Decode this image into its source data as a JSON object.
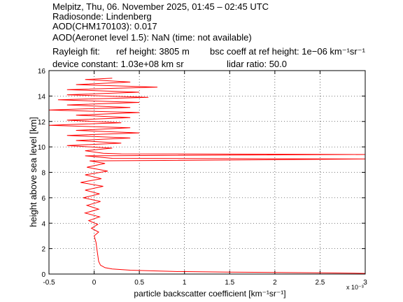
{
  "chart_data": {
    "type": "profile",
    "header": [
      "Melpitz, Thu, 06. November 2025, 01:45 – 02:45 UTC",
      "Radiosonde: Lindenberg",
      "AOD(CHM170103): 0.017",
      "AOD(Aeronet level 1.5): NaN   (time: not available)"
    ],
    "rayleigh": [
      "Rayleigh fit:",
      "ref height: 3805 m",
      "bsc coeff at ref height: 1e−06 km⁻¹sr⁻¹"
    ],
    "device": [
      "device constant: 1.03e+08 km sr",
      "lidar ratio: 50.0"
    ],
    "xlabel": "particle backscatter coefficient [km⁻¹sr⁻¹]",
    "xscale_label": "x 10⁻³",
    "ylabel": "height above sea level [km]",
    "color": "#ff0000",
    "grid": true,
    "xlim": [
      -0.5,
      3
    ],
    "xticks": [
      -0.5,
      0,
      0.5,
      1,
      1.5,
      2,
      2.5,
      3
    ],
    "ylim": [
      0,
      16
    ],
    "yticks": [
      0,
      2,
      4,
      6,
      8,
      10,
      12,
      14,
      16
    ],
    "heights": [
      0.05,
      0.1,
      0.15,
      0.2,
      0.3,
      0.4,
      0.5,
      0.7,
      1.0,
      1.5,
      2.0,
      2.5,
      3.0,
      3.3,
      3.6,
      3.9,
      4.2,
      4.5,
      4.8,
      5.1,
      5.4,
      5.7,
      6.0,
      6.3,
      6.6,
      6.9,
      7.2,
      7.5,
      7.8,
      8.1,
      8.4,
      8.7,
      8.9,
      9.0,
      9.05,
      9.1,
      9.3,
      9.4,
      9.45,
      9.5,
      9.7,
      9.9,
      10.1,
      10.3,
      10.5,
      10.7,
      10.9,
      11.1,
      11.3,
      11.5,
      11.7,
      11.9,
      12.1,
      12.3,
      12.5,
      12.7,
      12.9,
      13.1,
      13.3,
      13.5,
      13.7,
      13.9,
      14.1,
      14.3,
      14.5,
      14.7,
      14.9,
      15.1,
      15.3,
      15.4
    ],
    "values": [
      3.0,
      2.5,
      1.5,
      0.9,
      0.4,
      0.2,
      0.12,
      0.07,
      0.05,
      0.04,
      0.03,
      0.02,
      0.0,
      0.05,
      -0.03,
      0.04,
      -0.06,
      0.06,
      -0.1,
      0.05,
      -0.08,
      0.07,
      -0.12,
      0.06,
      -0.1,
      0.1,
      -0.15,
      0.08,
      -0.1,
      0.15,
      -0.08,
      0.12,
      -0.05,
      2.2,
      3.0,
      0.2,
      -0.1,
      3.0,
      0.3,
      0.1,
      -0.1,
      0.2,
      -0.3,
      0.3,
      -0.2,
      0.4,
      -0.3,
      0.5,
      -0.2,
      0.4,
      -0.5,
      0.3,
      -0.3,
      0.4,
      -0.2,
      0.5,
      -0.5,
      0.4,
      -0.3,
      0.5,
      -0.4,
      0.6,
      -0.3,
      0.5,
      -0.3,
      0.7,
      -0.2,
      0.4,
      -0.1,
      0.2
    ]
  }
}
